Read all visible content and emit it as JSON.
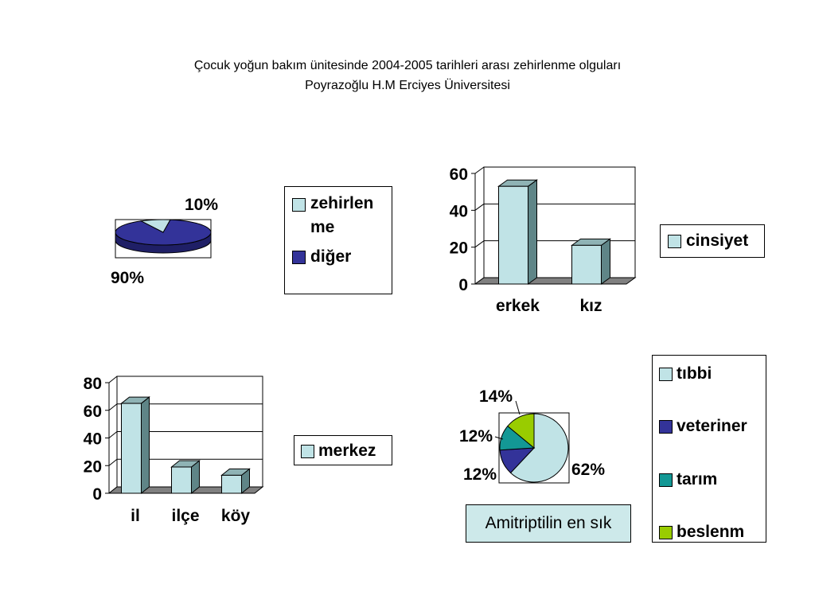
{
  "slide": {
    "title_line1": "Çocuk yoğun bakım ünitesinde 2004-2005 tarihleri arası zehirlenme olguları",
    "title_line2": "Poyrazoğlu H.M Erciyes Üniversitesi",
    "note": "Amitriptilin en sık"
  },
  "colors": {
    "light_cyan": "#c0e3e6",
    "navy": "#333399",
    "teal": "#139895",
    "lime": "#99cc00",
    "bar_side": "#5f8587",
    "grid": "#000000"
  },
  "chart_data": [
    {
      "type": "pie",
      "id": "pie1",
      "style": "3d",
      "slices": [
        {
          "name": "zehirlenme",
          "legend_line1": "zehirlen",
          "legend_line2": "me",
          "value": 10,
          "label": "10%",
          "color": "#c0e3e6"
        },
        {
          "name": "diğer",
          "value": 90,
          "label": "90%",
          "color": "#333399"
        }
      ]
    },
    {
      "type": "bar",
      "id": "bar1",
      "categories": [
        "erkek",
        "kız"
      ],
      "series": [
        {
          "name": "cinsiyet",
          "values": [
            53,
            21
          ]
        }
      ],
      "y_ticks": [
        0,
        20,
        40,
        60
      ],
      "ylim": [
        0,
        60
      ],
      "grid": true,
      "legend": "right"
    },
    {
      "type": "bar",
      "id": "bar2",
      "categories": [
        "il",
        "ilçe",
        "köy"
      ],
      "series": [
        {
          "name": "merkez",
          "values": [
            65,
            19,
            13
          ]
        }
      ],
      "y_ticks": [
        0,
        20,
        40,
        60,
        80
      ],
      "ylim": [
        0,
        80
      ],
      "grid": true,
      "legend": "right"
    },
    {
      "type": "pie",
      "id": "pie2",
      "slices": [
        {
          "name": "tıbbi",
          "value": 62,
          "label": "62%",
          "color": "#c0e3e6"
        },
        {
          "name": "veteriner",
          "value": 12,
          "label": "12%",
          "color": "#333399"
        },
        {
          "name": "tarım",
          "value": 12,
          "label": "12%",
          "color": "#139895"
        },
        {
          "name": "beslenm",
          "value": 14,
          "label": "14%",
          "color": "#99cc00"
        }
      ],
      "legend": "right"
    }
  ]
}
